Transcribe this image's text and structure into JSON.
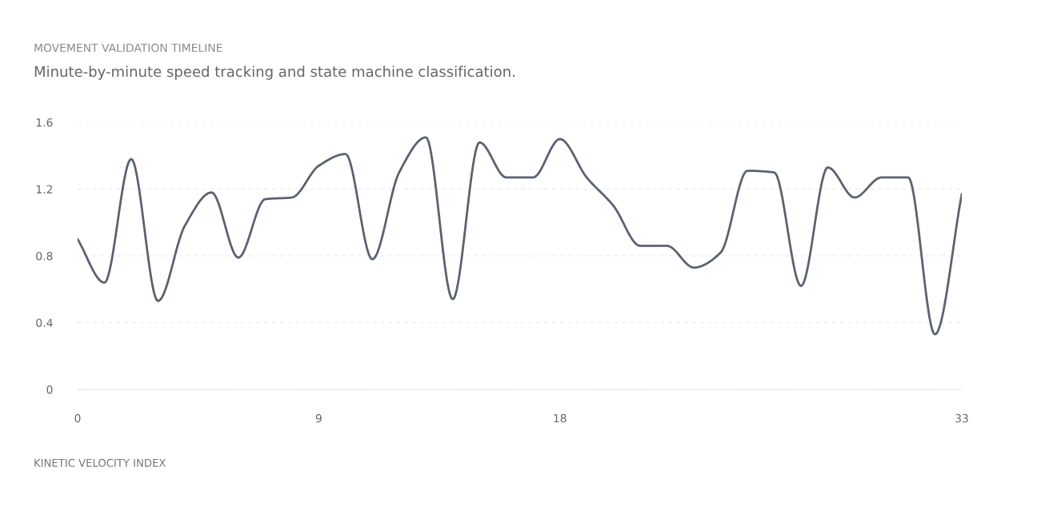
{
  "chart_data": {
    "type": "line",
    "title": "MOVEMENT VALIDATION TIMELINE",
    "subtitle": "Minute-by-minute speed tracking and state machine classification.",
    "xlabel": "KINETIC VELOCITY INDEX",
    "x": [
      0,
      1,
      2,
      3,
      4,
      5,
      6,
      7,
      8,
      9,
      10,
      11,
      12,
      13,
      14,
      15,
      16,
      17,
      18,
      19,
      20,
      21,
      22,
      23,
      24,
      25,
      26,
      27,
      28,
      29,
      30,
      31,
      32,
      33
    ],
    "series": [
      {
        "color": "#5b6270",
        "values": [
          0.9,
          0.64,
          1.38,
          0.53,
          0.98,
          1.18,
          0.79,
          1.14,
          1.15,
          1.34,
          1.41,
          0.78,
          1.3,
          1.51,
          0.54,
          1.48,
          1.27,
          1.27,
          1.5,
          1.27,
          1.1,
          0.86,
          0.86,
          0.73,
          0.82,
          1.31,
          1.3,
          0.62,
          1.33,
          1.15,
          1.27,
          1.27,
          0.33,
          1.17
        ]
      }
    ],
    "xlim": [
      0,
      33
    ],
    "xticks": [
      0,
      9,
      18,
      33
    ],
    "ylim": [
      0,
      1.6
    ],
    "yticks": [
      0,
      0.4,
      0.8,
      1.2,
      1.6
    ],
    "grid": "y",
    "legend": false,
    "marker": "none",
    "line_style": "solid"
  }
}
